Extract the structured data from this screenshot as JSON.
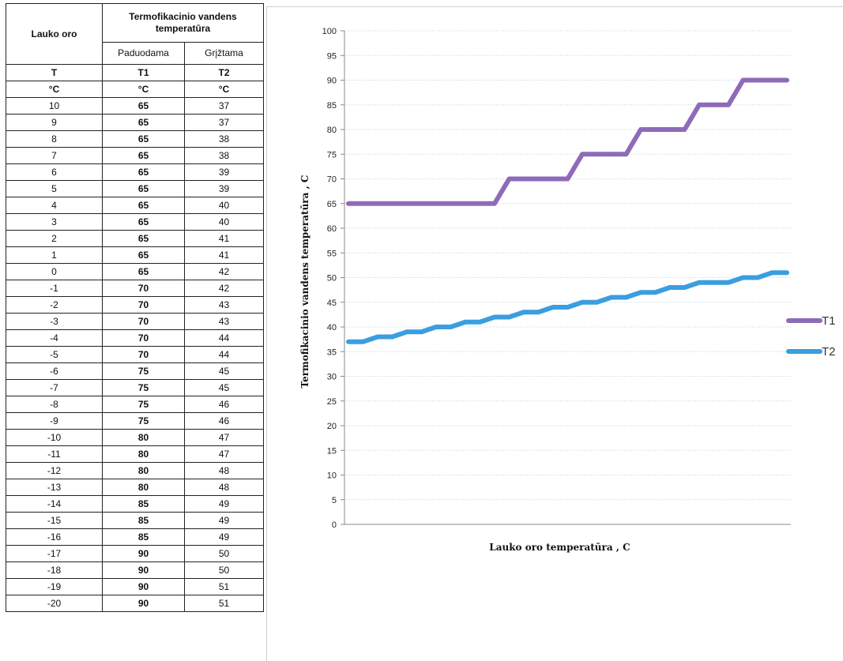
{
  "table": {
    "header_lauko": "Lauko oro",
    "header_group": "Termofikacinio vandens temperatūra",
    "header_sub1": "Paduodama",
    "header_sub2": "Grįžtama",
    "sym_T": "T",
    "sym_T1": "T1",
    "sym_T2": "T2",
    "unit_0": "°C",
    "unit_1": "°C",
    "unit_2": "°C",
    "rows": [
      {
        "t": "10",
        "t1": "65",
        "t2": "37"
      },
      {
        "t": "9",
        "t1": "65",
        "t2": "37"
      },
      {
        "t": "8",
        "t1": "65",
        "t2": "38"
      },
      {
        "t": "7",
        "t1": "65",
        "t2": "38"
      },
      {
        "t": "6",
        "t1": "65",
        "t2": "39"
      },
      {
        "t": "5",
        "t1": "65",
        "t2": "39"
      },
      {
        "t": "4",
        "t1": "65",
        "t2": "40"
      },
      {
        "t": "3",
        "t1": "65",
        "t2": "40"
      },
      {
        "t": "2",
        "t1": "65",
        "t2": "41"
      },
      {
        "t": "1",
        "t1": "65",
        "t2": "41"
      },
      {
        "t": "0",
        "t1": "65",
        "t2": "42"
      },
      {
        "t": "-1",
        "t1": "70",
        "t2": "42"
      },
      {
        "t": "-2",
        "t1": "70",
        "t2": "43"
      },
      {
        "t": "-3",
        "t1": "70",
        "t2": "43"
      },
      {
        "t": "-4",
        "t1": "70",
        "t2": "44"
      },
      {
        "t": "-5",
        "t1": "70",
        "t2": "44"
      },
      {
        "t": "-6",
        "t1": "75",
        "t2": "45"
      },
      {
        "t": "-7",
        "t1": "75",
        "t2": "45"
      },
      {
        "t": "-8",
        "t1": "75",
        "t2": "46"
      },
      {
        "t": "-9",
        "t1": "75",
        "t2": "46"
      },
      {
        "t": "-10",
        "t1": "80",
        "t2": "47"
      },
      {
        "t": "-11",
        "t1": "80",
        "t2": "47"
      },
      {
        "t": "-12",
        "t1": "80",
        "t2": "48"
      },
      {
        "t": "-13",
        "t1": "80",
        "t2": "48"
      },
      {
        "t": "-14",
        "t1": "85",
        "t2": "49"
      },
      {
        "t": "-15",
        "t1": "85",
        "t2": "49"
      },
      {
        "t": "-16",
        "t1": "85",
        "t2": "49"
      },
      {
        "t": "-17",
        "t1": "90",
        "t2": "50"
      },
      {
        "t": "-18",
        "t1": "90",
        "t2": "50"
      },
      {
        "t": "-19",
        "t1": "90",
        "t2": "51"
      },
      {
        "t": "-20",
        "t1": "90",
        "t2": "51"
      }
    ]
  },
  "chart_data": {
    "type": "line",
    "title": "",
    "xlabel": "Lauko oro temperatūra , C",
    "ylabel": "Termofikacinio vandens temperatūra , C",
    "ylim": [
      0,
      100
    ],
    "yticks": [
      0,
      5,
      10,
      15,
      20,
      25,
      30,
      35,
      40,
      45,
      50,
      55,
      60,
      65,
      70,
      75,
      80,
      85,
      90,
      95,
      100
    ],
    "x": [
      10,
      9,
      8,
      7,
      6,
      5,
      4,
      3,
      2,
      1,
      0,
      -1,
      -2,
      -3,
      -4,
      -5,
      -6,
      -7,
      -8,
      -9,
      -10,
      -11,
      -12,
      -13,
      -14,
      -15,
      -16,
      -17,
      -18,
      -19,
      -20
    ],
    "series": [
      {
        "name": "T1",
        "color": "#8e6bb8",
        "values": [
          65,
          65,
          65,
          65,
          65,
          65,
          65,
          65,
          65,
          65,
          65,
          70,
          70,
          70,
          70,
          70,
          75,
          75,
          75,
          75,
          80,
          80,
          80,
          80,
          85,
          85,
          85,
          90,
          90,
          90,
          90
        ]
      },
      {
        "name": "T2",
        "color": "#3a9ee0",
        "values": [
          37,
          37,
          38,
          38,
          39,
          39,
          40,
          40,
          41,
          41,
          42,
          42,
          43,
          43,
          44,
          44,
          45,
          45,
          46,
          46,
          47,
          47,
          48,
          48,
          49,
          49,
          49,
          50,
          50,
          51,
          51
        ]
      }
    ],
    "grid": "horizontal dotted",
    "legend": "right"
  }
}
